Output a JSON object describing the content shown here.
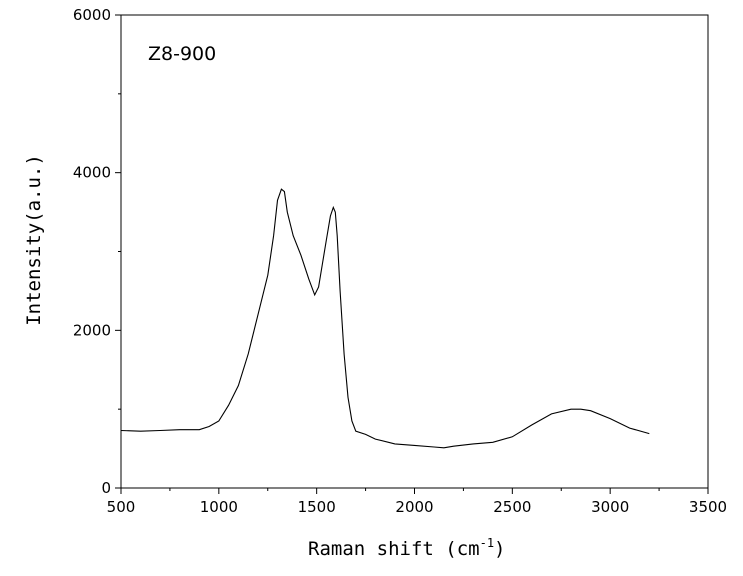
{
  "chart_data": {
    "type": "line",
    "title": "",
    "annotation": "Z8-900",
    "xlabel": "Raman shift (cm",
    "xlabel_superscript": "-1",
    "xlabel_suffix": ")",
    "ylabel": "Intensity(a.u.)",
    "xlim": [
      500,
      3500
    ],
    "ylim": [
      0,
      6000
    ],
    "x_ticks": [
      500,
      1000,
      1500,
      2000,
      2500,
      3000,
      3500
    ],
    "x_tick_labels": [
      "500",
      "1000",
      "1500",
      "2000",
      "2500",
      "3000",
      "3500"
    ],
    "y_ticks": [
      0,
      2000,
      4000,
      6000
    ],
    "y_tick_labels": [
      "0",
      "2000",
      "4000",
      "6000"
    ],
    "grid": false,
    "line_color": "#000000",
    "series": [
      {
        "x": [
          500,
          600,
          700,
          800,
          900,
          950,
          1000,
          1050,
          1100,
          1150,
          1200,
          1250,
          1280,
          1300,
          1320,
          1335,
          1350,
          1380,
          1420,
          1460,
          1490,
          1510,
          1530,
          1550,
          1570,
          1585,
          1595,
          1605,
          1620,
          1640,
          1660,
          1680,
          1700,
          1750,
          1800,
          1900,
          2000,
          2100,
          2150,
          2200,
          2300,
          2400,
          2500,
          2600,
          2700,
          2800,
          2850,
          2900,
          3000,
          3100,
          3200
        ],
        "y": [
          730,
          720,
          730,
          740,
          740,
          780,
          850,
          1050,
          1300,
          1700,
          2200,
          2700,
          3200,
          3650,
          3790,
          3760,
          3500,
          3200,
          2950,
          2650,
          2450,
          2550,
          2850,
          3150,
          3450,
          3560,
          3500,
          3200,
          2500,
          1700,
          1150,
          850,
          720,
          680,
          620,
          560,
          540,
          520,
          510,
          530,
          560,
          580,
          650,
          800,
          940,
          1000,
          1000,
          980,
          880,
          760,
          690
        ]
      }
    ]
  }
}
